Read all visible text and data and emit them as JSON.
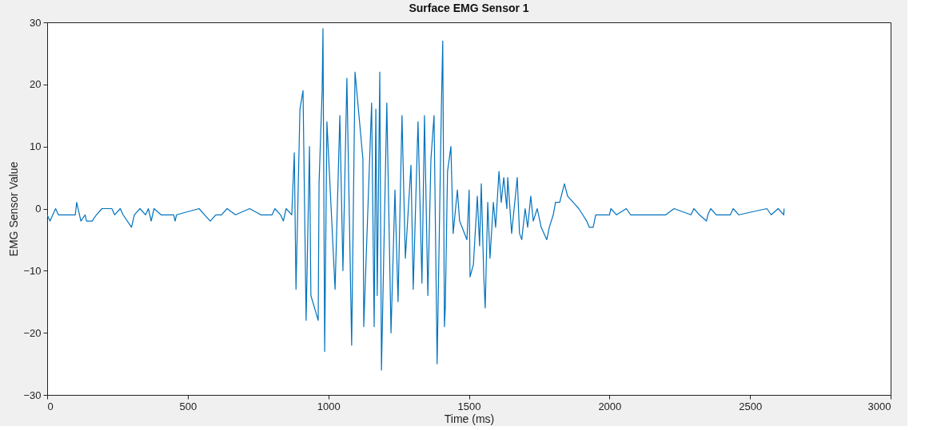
{
  "chart_data": {
    "type": "line",
    "title": "Surface EMG Sensor 1",
    "xlabel": "Time (ms)",
    "ylabel": "EMG Sensor Value",
    "xlim": [
      0,
      3000
    ],
    "xticks": [
      0,
      500,
      1000,
      1500,
      2000,
      2500,
      3000
    ],
    "ylim": [
      -30,
      30
    ],
    "yticks": [
      -30,
      -20,
      -10,
      0,
      10,
      20,
      30
    ],
    "grid": false,
    "marker": "none",
    "line_style": "solid",
    "series": [
      {
        "color": "#0072bd",
        "x": [
          0,
          10,
          20,
          30,
          40,
          100,
          105,
          115,
          120,
          135,
          140,
          160,
          175,
          195,
          230,
          240,
          260,
          270,
          300,
          310,
          330,
          350,
          360,
          370,
          380,
          405,
          450,
          455,
          460,
          540,
          560,
          580,
          600,
          620,
          640,
          670,
          720,
          760,
          800,
          810,
          830,
          840,
          850,
          870,
          879,
          885,
          899,
          910,
          921,
          933,
          938,
          964,
          967,
          978,
          981,
          987,
          995,
          1024,
          1041,
          1052,
          1066,
          1083,
          1095,
          1123,
          1126,
          1154,
          1163,
          1169,
          1174,
          1183,
          1189,
          1208,
          1223,
          1237,
          1248,
          1262,
          1274,
          1294,
          1302,
          1319,
          1333,
          1342,
          1354,
          1365,
          1376,
          1387,
          1402,
          1407,
          1413,
          1416,
          1424,
          1436,
          1444,
          1459,
          1467,
          1493,
          1501,
          1504,
          1516,
          1530,
          1538,
          1544,
          1553,
          1558,
          1567,
          1575,
          1587,
          1595,
          1607,
          1615,
          1624,
          1635,
          1638,
          1646,
          1652,
          1672,
          1680,
          1688,
          1700,
          1709,
          1720,
          1729,
          1743,
          1757,
          1777,
          1786,
          1800,
          1808,
          1823,
          1834,
          1840,
          1851,
          1871,
          1891,
          1905,
          1919,
          1928,
          1942,
          1951,
          2000,
          2005,
          2025,
          2060,
          2075,
          2120,
          2200,
          2230,
          2290,
          2300,
          2320,
          2345,
          2350,
          2360,
          2380,
          2430,
          2440,
          2460,
          2560,
          2575,
          2600,
          2620,
          2621
        ],
        "values": [
          -1,
          -2,
          -1,
          0,
          -1,
          -1,
          1,
          -1,
          -2,
          -1,
          -2,
          -2,
          -1,
          0,
          0,
          -1,
          0,
          -1,
          -3,
          -1,
          0,
          -1,
          0,
          -2,
          0,
          -1,
          -1,
          -2,
          -1,
          0,
          -1,
          -2,
          -1,
          -1,
          0,
          -1,
          0,
          -1,
          -1,
          0,
          -1,
          -2,
          0,
          -1,
          9,
          -13,
          16,
          19,
          -18,
          10,
          -14,
          -18,
          4,
          19,
          29,
          -23,
          14,
          -13,
          15,
          -10,
          21,
          -22,
          22,
          8,
          -19,
          17,
          -19,
          16,
          -14,
          22,
          -26,
          17,
          -20,
          3,
          -15,
          15,
          -8,
          7,
          -13,
          14,
          -12,
          15,
          -14,
          8,
          15,
          -25,
          16,
          27,
          -19,
          -16,
          6,
          10,
          -4,
          3,
          -2,
          -5,
          3,
          -11,
          -9,
          2,
          -6,
          4,
          -11,
          -16,
          1,
          -8,
          1,
          -3,
          6,
          1,
          5,
          0,
          5,
          0,
          -4,
          5,
          -4,
          -5,
          0,
          -3,
          2,
          -2,
          0,
          -3,
          -5,
          -3,
          -1,
          1,
          1,
          3,
          4,
          2,
          1,
          0,
          -1,
          -2,
          -3,
          -3,
          -1,
          -1,
          0,
          -1,
          0,
          -1,
          -1,
          -1,
          0,
          -1,
          0,
          -1,
          -2,
          -1,
          0,
          -1,
          -1,
          0,
          -1,
          0,
          -1,
          0,
          -1,
          0
        ]
      }
    ]
  }
}
